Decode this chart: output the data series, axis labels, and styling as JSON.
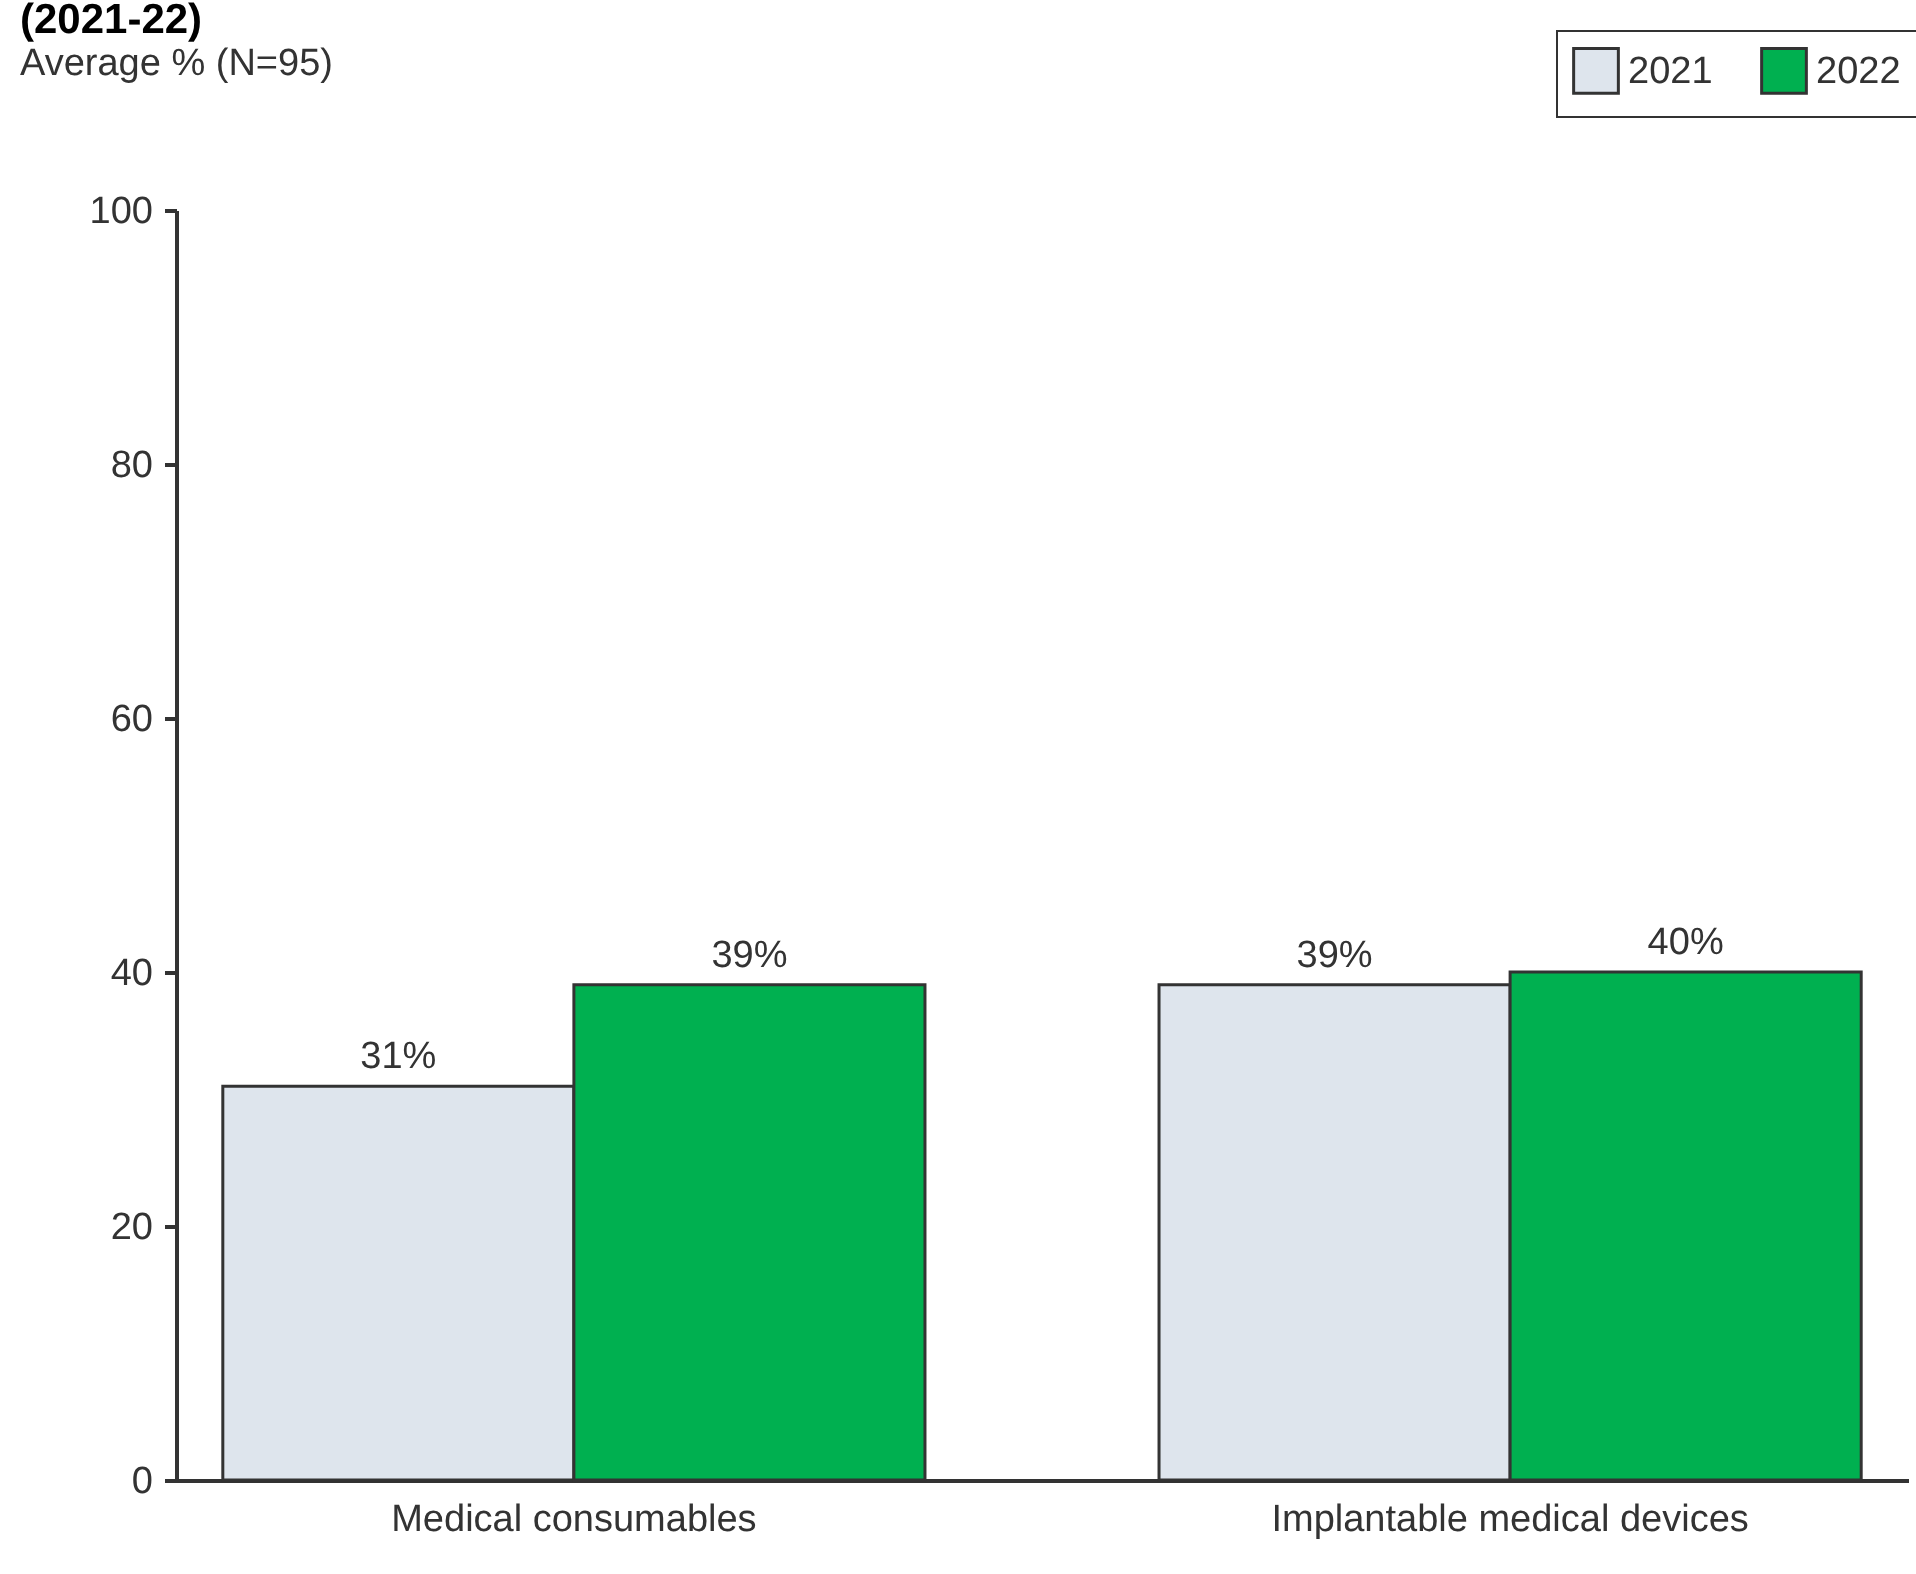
{
  "chart_data": {
    "type": "bar",
    "title": "(2021-22)",
    "subtitle": "Average % (N=95)",
    "categories": [
      "Medical consumables",
      "Implantable medical devices"
    ],
    "series": [
      {
        "name": "2021",
        "color": "#dee5ed",
        "values": [
          31,
          39
        ],
        "value_labels": [
          "31%",
          "39%"
        ]
      },
      {
        "name": "2022",
        "color": "#00b050",
        "values": [
          39,
          40
        ],
        "value_labels": [
          "39%",
          "40%"
        ]
      }
    ],
    "ylim": [
      0,
      100
    ],
    "yticks": [
      0,
      20,
      40,
      60,
      80,
      100
    ],
    "grid": false,
    "legend": "top right"
  }
}
